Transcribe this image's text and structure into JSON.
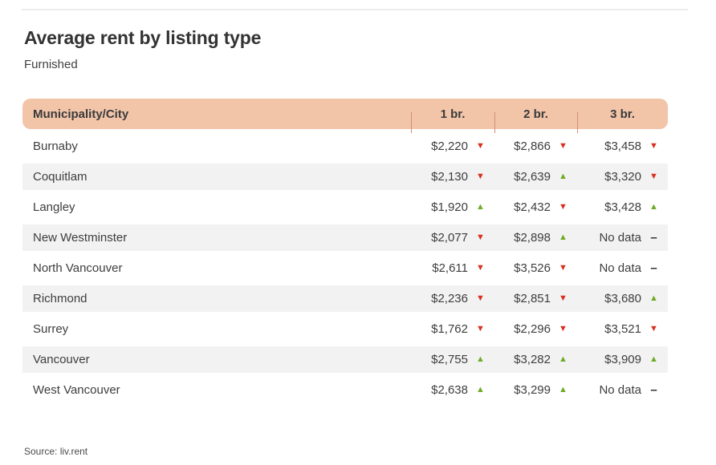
{
  "chart_data": {
    "type": "table",
    "title": "Average rent by listing type",
    "subtitle": "Furnished",
    "source": "Source: liv.rent",
    "columns": [
      "Municipality/City",
      "1 br.",
      "2 br.",
      "3 br."
    ],
    "rows": [
      {
        "city": "Burnaby",
        "values": [
          {
            "text": "$2,220",
            "trend": "down"
          },
          {
            "text": "$2,866",
            "trend": "down"
          },
          {
            "text": "$3,458",
            "trend": "down"
          }
        ]
      },
      {
        "city": "Coquitlam",
        "values": [
          {
            "text": "$2,130",
            "trend": "down"
          },
          {
            "text": "$2,639",
            "trend": "up"
          },
          {
            "text": "$3,320",
            "trend": "down"
          }
        ]
      },
      {
        "city": "Langley",
        "values": [
          {
            "text": "$1,920",
            "trend": "up"
          },
          {
            "text": "$2,432",
            "trend": "down"
          },
          {
            "text": "$3,428",
            "trend": "up"
          }
        ]
      },
      {
        "city": "New Westminster",
        "values": [
          {
            "text": "$2,077",
            "trend": "down"
          },
          {
            "text": "$2,898",
            "trend": "up"
          },
          {
            "text": "No data",
            "trend": "none"
          }
        ]
      },
      {
        "city": "North Vancouver",
        "values": [
          {
            "text": "$2,611",
            "trend": "down"
          },
          {
            "text": "$3,526",
            "trend": "down"
          },
          {
            "text": "No data",
            "trend": "none"
          }
        ]
      },
      {
        "city": "Richmond",
        "values": [
          {
            "text": "$2,236",
            "trend": "down"
          },
          {
            "text": "$2,851",
            "trend": "down"
          },
          {
            "text": "$3,680",
            "trend": "up"
          }
        ]
      },
      {
        "city": "Surrey",
        "values": [
          {
            "text": "$1,762",
            "trend": "down"
          },
          {
            "text": "$2,296",
            "trend": "down"
          },
          {
            "text": "$3,521",
            "trend": "down"
          }
        ]
      },
      {
        "city": "Vancouver",
        "values": [
          {
            "text": "$2,755",
            "trend": "up"
          },
          {
            "text": "$3,282",
            "trend": "up"
          },
          {
            "text": "$3,909",
            "trend": "up"
          }
        ]
      },
      {
        "city": "West Vancouver",
        "values": [
          {
            "text": "$2,638",
            "trend": "up"
          },
          {
            "text": "$3,299",
            "trend": "up"
          },
          {
            "text": "No data",
            "trend": "none"
          }
        ]
      }
    ],
    "trend_glyphs": {
      "up": "▲",
      "down": "▼",
      "none": "–"
    },
    "colors": {
      "header_bg": "#f2c5a9",
      "header_divider": "#cf9270",
      "alt_row_bg": "#f2f2f2",
      "up": "#6dab25",
      "down": "#d92f1f",
      "no_data_dash": "#2e2e2e",
      "text": "#3d3d3d"
    },
    "layout_hints": {
      "alternating_rows": true,
      "first_alt_row_index": 1
    }
  }
}
